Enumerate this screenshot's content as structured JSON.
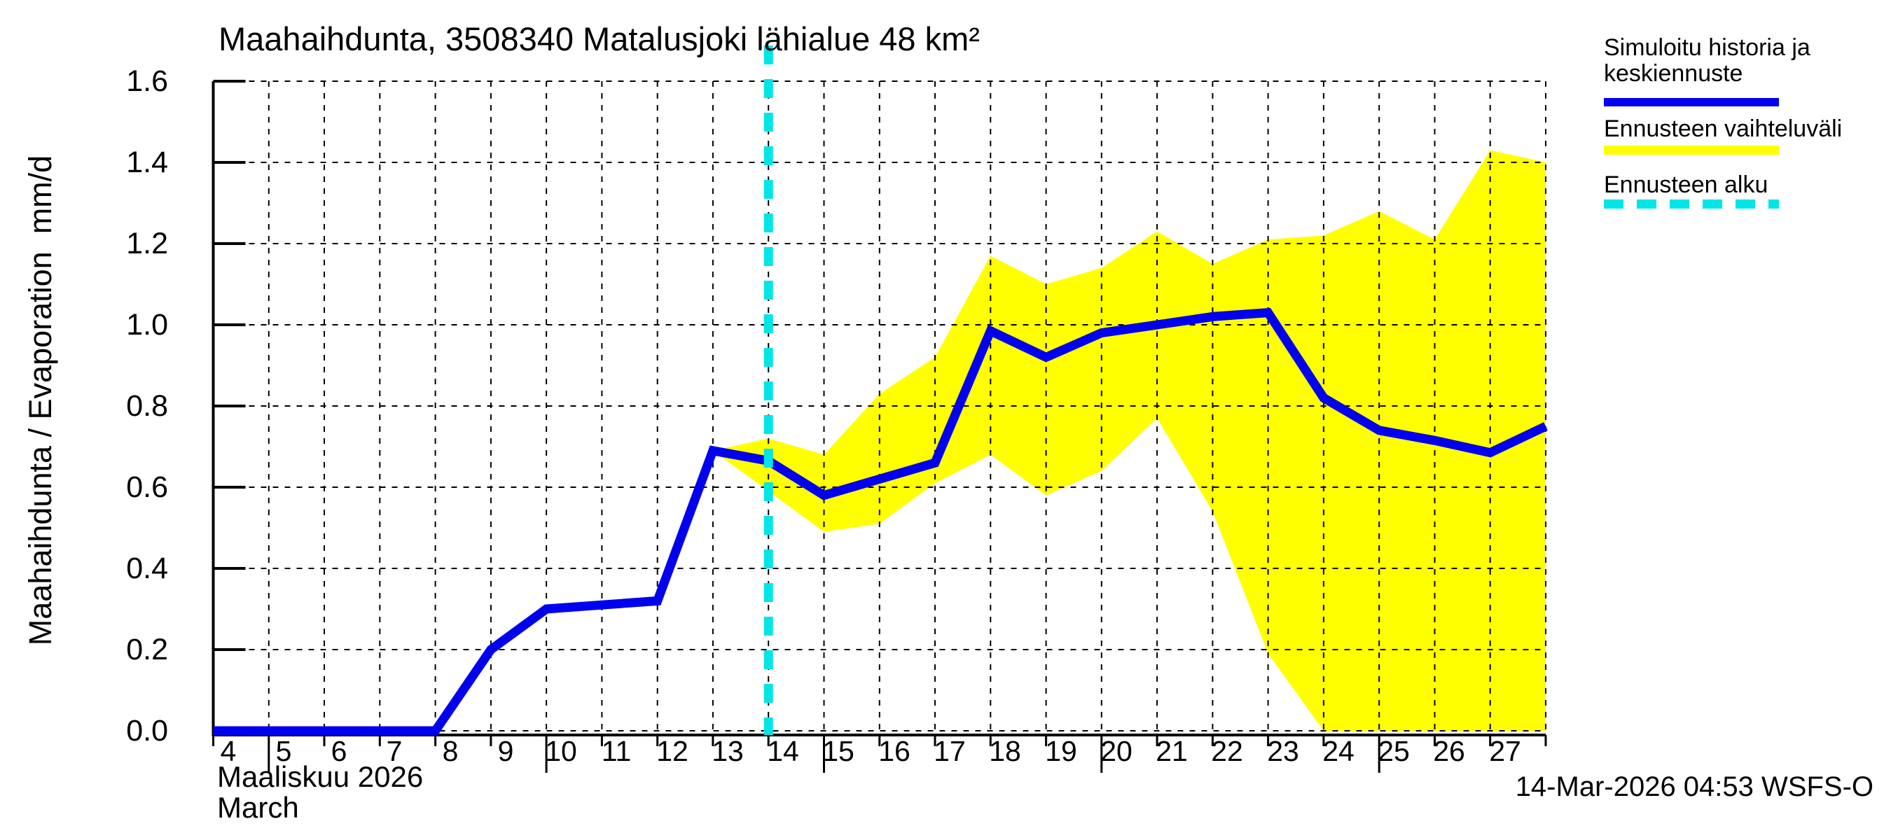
{
  "title": "Maahaihdunta, 3508340 Matalusjoki lähialue 48 km²",
  "y_axis": {
    "label": "Maahaihdunta / Evaporation  mm/d"
  },
  "x_axis": {
    "label_fi": "Maaliskuu 2026",
    "label_en": "March"
  },
  "footer": {
    "timestamp": "14-Mar-2026 04:53 WSFS-O"
  },
  "legend": {
    "items": [
      {
        "label": "Simuloitu historia ja keskiennuste",
        "swatch": "line",
        "color": "#0000ee"
      },
      {
        "label": "Ennusteen vaihteluväli",
        "swatch": "band",
        "color": "#ffff00"
      },
      {
        "label": "Ennusteen alku",
        "swatch": "dashed-line",
        "color": "#00e5e5"
      }
    ]
  },
  "chart_data": {
    "type": "line",
    "title": "Maahaihdunta, 3508340 Matalusjoki lähialue 48 km²",
    "xlabel": "Maaliskuu 2026 / March",
    "ylabel": "Maahaihdunta / Evaporation mm/d",
    "x_range": [
      4,
      28
    ],
    "ylim": [
      0,
      1.6
    ],
    "y_ticks": [
      0,
      0.2,
      0.4,
      0.6,
      0.8,
      1.0,
      1.2,
      1.4,
      1.6
    ],
    "x_tick_days": [
      4,
      5,
      6,
      7,
      8,
      9,
      10,
      11,
      12,
      13,
      14,
      15,
      16,
      17,
      18,
      19,
      20,
      21,
      22,
      23,
      24,
      25,
      26,
      27
    ],
    "grid": true,
    "legend_position": "top-right",
    "forecast_start_day": 14,
    "series": [
      {
        "name": "Simuloitu historia ja keskiennuste",
        "type": "line",
        "color": "#0000ee",
        "x": [
          4,
          5,
          6,
          7,
          8,
          9,
          10,
          11,
          12,
          13,
          14,
          15,
          16,
          17,
          18,
          19,
          20,
          21,
          22,
          23,
          24,
          25,
          26,
          27,
          28
        ],
        "y": [
          0,
          0,
          0,
          0,
          0,
          0.2,
          0.3,
          0.31,
          0.32,
          0.69,
          0.665,
          0.58,
          0.62,
          0.66,
          0.985,
          0.92,
          0.98,
          1.0,
          1.02,
          1.03,
          0.82,
          0.74,
          0.715,
          0.685,
          0.75
        ]
      }
    ],
    "band": {
      "name": "Ennusteen vaihteluväli",
      "color": "#ffff00",
      "x": [
        13,
        14,
        15,
        16,
        17,
        18,
        19,
        20,
        21,
        22,
        23,
        24,
        25,
        26,
        27,
        28
      ],
      "upper": [
        0.69,
        0.72,
        0.68,
        0.83,
        0.92,
        1.17,
        1.1,
        1.14,
        1.23,
        1.15,
        1.21,
        1.22,
        1.28,
        1.21,
        1.43,
        1.4
      ],
      "lower": [
        0.69,
        0.59,
        0.49,
        0.51,
        0.61,
        0.68,
        0.58,
        0.64,
        0.77,
        0.54,
        0.19,
        0,
        0,
        0,
        0,
        0
      ]
    }
  }
}
